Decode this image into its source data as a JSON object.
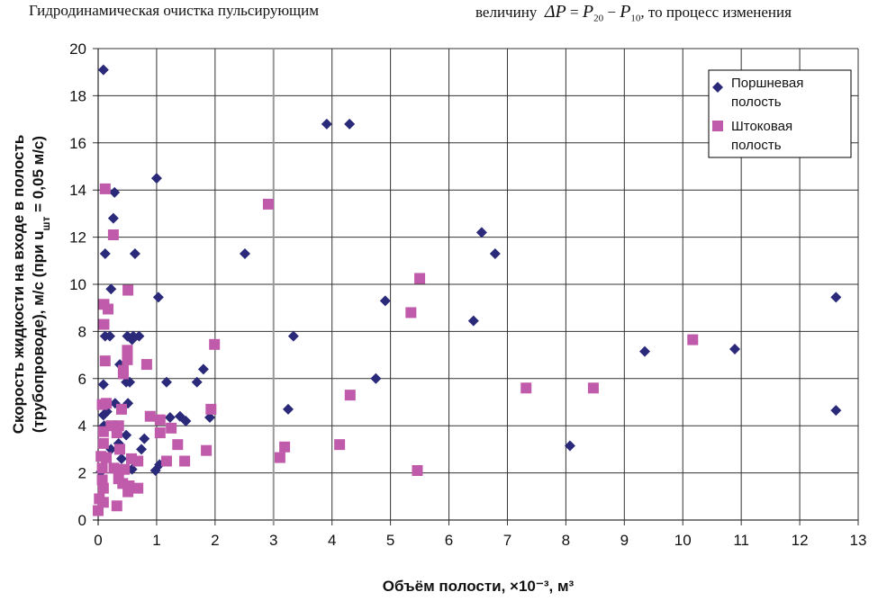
{
  "page_text": {
    "left_fragment": "Гидродинамическая очистка пульсирующим",
    "right_prefix": "величину",
    "right_formula_delta": "ΔP",
    "right_formula_eq": " = ",
    "right_p": "P",
    "right_sub1": "20",
    "right_minus": " − ",
    "right_sub2": "10",
    "right_suffix": ", то процесс изменения"
  },
  "chart_data": {
    "type": "scatter",
    "title": "",
    "xlabel": "Объём полости,  ×10⁻³, м³",
    "ylabel_line1": "Скорость жидкости на входе в полость",
    "ylabel_line2": "(трубопроводе),  м/с (при u",
    "ylabel_sub": "шт",
    "ylabel_line2_end": " = 0,05 м/с)",
    "xlim": [
      0,
      13
    ],
    "ylim": [
      0,
      20
    ],
    "xticks": [
      "0",
      "1",
      "2",
      "3",
      "4",
      "5",
      "6",
      "7",
      "8",
      "9",
      "10",
      "11",
      "12",
      "13"
    ],
    "yticks": [
      "0",
      "2",
      "4",
      "6",
      "8",
      "10",
      "12",
      "14",
      "16",
      "18",
      "20"
    ],
    "grid": true,
    "legend_position": "top-right",
    "series": [
      {
        "name": "Поршневая полость",
        "marker": "diamond",
        "color": "#2b2a7a",
        "points": [
          [
            0.09,
            19.1
          ],
          [
            1.0,
            14.5
          ],
          [
            0.28,
            13.9
          ],
          [
            0.26,
            12.8
          ],
          [
            0.12,
            11.3
          ],
          [
            0.63,
            11.3
          ],
          [
            0.22,
            9.8
          ],
          [
            1.03,
            9.45
          ],
          [
            2.51,
            11.3
          ],
          [
            3.91,
            16.8
          ],
          [
            4.3,
            16.8
          ],
          [
            6.56,
            12.2
          ],
          [
            6.79,
            11.3
          ],
          [
            4.91,
            9.3
          ],
          [
            6.42,
            8.45
          ],
          [
            3.34,
            7.8
          ],
          [
            4.75,
            6.0
          ],
          [
            3.25,
            4.7
          ],
          [
            8.07,
            3.15
          ],
          [
            9.35,
            7.15
          ],
          [
            10.89,
            7.25
          ],
          [
            12.62,
            9.45
          ],
          [
            12.62,
            4.65
          ],
          [
            1.8,
            6.4
          ],
          [
            1.69,
            5.85
          ],
          [
            1.17,
            5.85
          ],
          [
            0.09,
            5.75
          ],
          [
            0.48,
            5.85
          ],
          [
            0.54,
            5.85
          ],
          [
            0.29,
            4.95
          ],
          [
            0.51,
            4.95
          ],
          [
            1.23,
            4.35
          ],
          [
            1.4,
            4.4
          ],
          [
            1.5,
            4.2
          ],
          [
            1.91,
            4.35
          ],
          [
            0.79,
            3.45
          ],
          [
            0.74,
            3.0
          ],
          [
            0.4,
            2.6
          ],
          [
            0.58,
            2.15
          ],
          [
            0.09,
            4.45
          ],
          [
            0.48,
            3.6
          ],
          [
            0.35,
            3.25
          ],
          [
            0.22,
            3.0
          ],
          [
            0.98,
            2.1
          ],
          [
            1.05,
            2.35
          ],
          [
            0.12,
            7.8
          ],
          [
            0.2,
            7.8
          ],
          [
            0.5,
            7.8
          ],
          [
            0.6,
            7.8
          ],
          [
            0.7,
            7.8
          ],
          [
            0.58,
            7.65
          ],
          [
            0.37,
            6.6
          ],
          [
            0.05,
            2.05
          ],
          [
            0.15,
            4.6
          ],
          [
            0.1,
            4.0
          ]
        ]
      },
      {
        "name": "Штоковая полость",
        "marker": "square",
        "color": "#c05aaa",
        "points": [
          [
            0.12,
            14.05
          ],
          [
            0.26,
            12.1
          ],
          [
            2.91,
            13.4
          ],
          [
            5.5,
            10.25
          ],
          [
            5.35,
            8.8
          ],
          [
            0.51,
            9.75
          ],
          [
            0.1,
            9.15
          ],
          [
            0.17,
            8.95
          ],
          [
            0.1,
            8.3
          ],
          [
            0.12,
            6.75
          ],
          [
            0.5,
            7.2
          ],
          [
            0.5,
            6.8
          ],
          [
            0.83,
            6.6
          ],
          [
            1.99,
            7.45
          ],
          [
            0.43,
            6.35
          ],
          [
            0.43,
            6.2
          ],
          [
            10.17,
            7.65
          ],
          [
            7.32,
            5.6
          ],
          [
            8.47,
            5.6
          ],
          [
            4.31,
            5.3
          ],
          [
            4.13,
            3.2
          ],
          [
            3.19,
            3.1
          ],
          [
            3.11,
            2.65
          ],
          [
            5.46,
            2.1
          ],
          [
            1.93,
            4.7
          ],
          [
            1.85,
            2.95
          ],
          [
            0.89,
            4.4
          ],
          [
            1.06,
            4.25
          ],
          [
            1.06,
            3.7
          ],
          [
            1.25,
            3.9
          ],
          [
            1.36,
            3.2
          ],
          [
            1.48,
            2.5
          ],
          [
            1.17,
            2.5
          ],
          [
            0.68,
            2.5
          ],
          [
            0.57,
            2.6
          ],
          [
            0.07,
            4.9
          ],
          [
            0.14,
            4.95
          ],
          [
            0.4,
            4.7
          ],
          [
            0.22,
            4.0
          ],
          [
            0.35,
            4.0
          ],
          [
            0.09,
            3.75
          ],
          [
            0.32,
            3.7
          ],
          [
            0.09,
            3.25
          ],
          [
            0.37,
            3.0
          ],
          [
            0.05,
            2.7
          ],
          [
            0.14,
            2.65
          ],
          [
            0.07,
            2.2
          ],
          [
            0.27,
            2.2
          ],
          [
            0.45,
            2.15
          ],
          [
            0.07,
            1.7
          ],
          [
            0.35,
            1.75
          ],
          [
            0.42,
            1.55
          ],
          [
            0.53,
            1.45
          ],
          [
            0.68,
            1.35
          ],
          [
            0.51,
            1.2
          ],
          [
            0.09,
            1.35
          ],
          [
            0.02,
            0.9
          ],
          [
            0.09,
            0.75
          ],
          [
            0.32,
            0.6
          ],
          [
            0.0,
            0.4
          ]
        ]
      }
    ]
  }
}
